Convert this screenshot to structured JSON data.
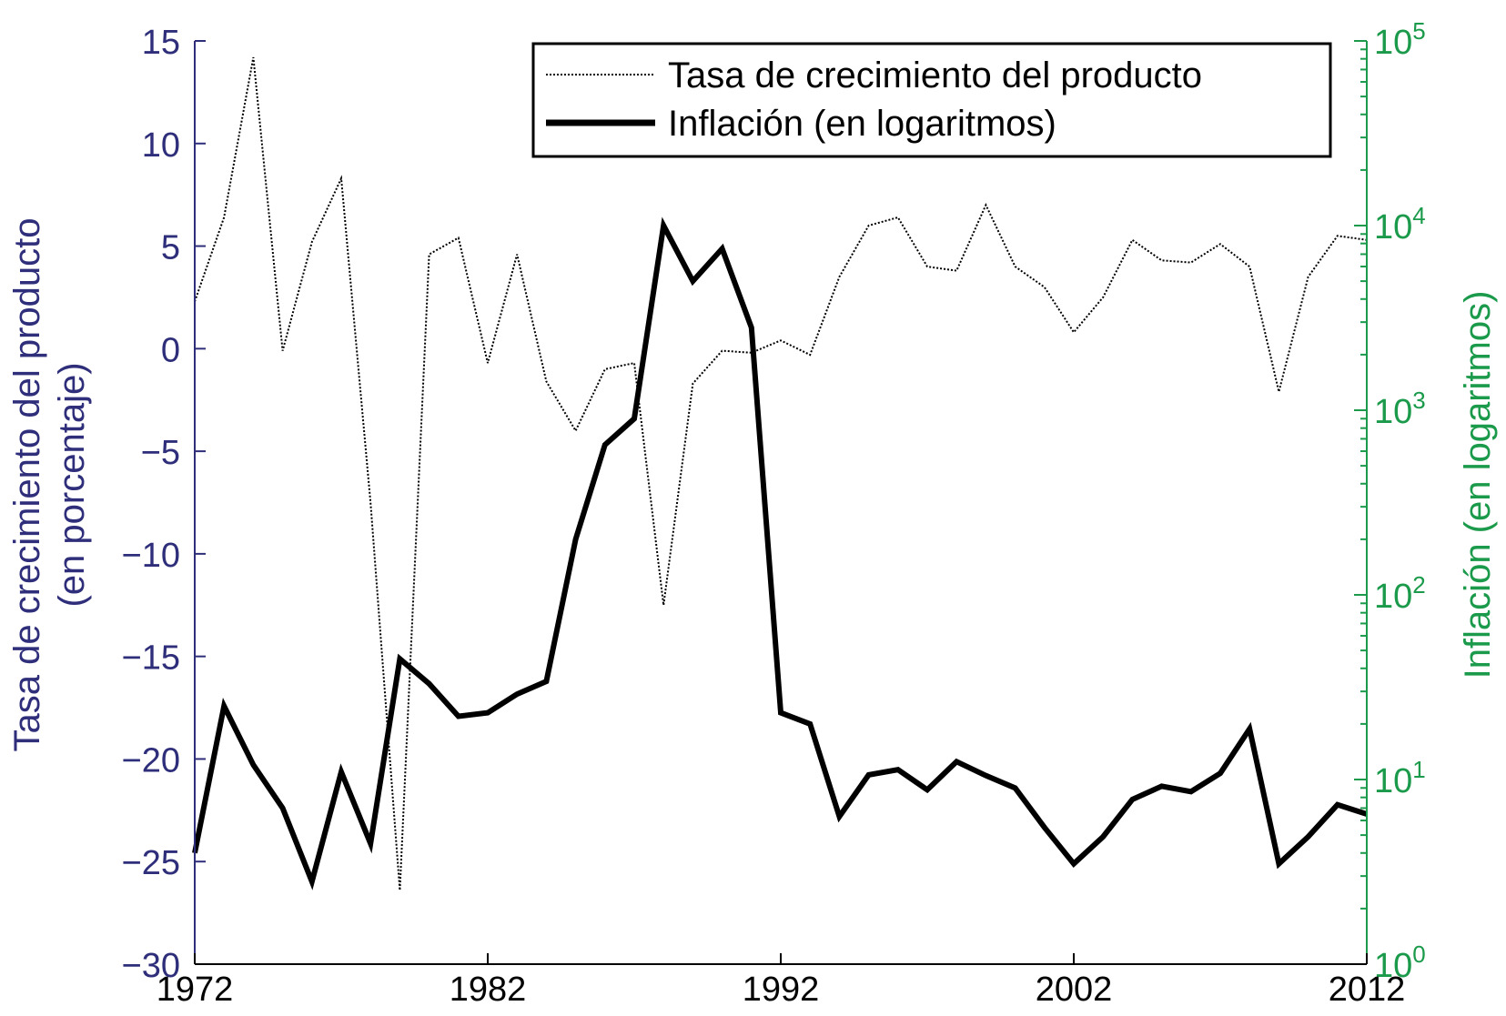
{
  "chart_data": {
    "type": "line",
    "title": "",
    "x": [
      1972,
      1973,
      1974,
      1975,
      1976,
      1977,
      1978,
      1979,
      1980,
      1981,
      1982,
      1983,
      1984,
      1985,
      1986,
      1987,
      1988,
      1989,
      1990,
      1991,
      1992,
      1993,
      1994,
      1995,
      1996,
      1997,
      1998,
      1999,
      2000,
      2001,
      2002,
      2003,
      2004,
      2005,
      2006,
      2007,
      2008,
      2009,
      2010,
      2011,
      2012
    ],
    "xlim": [
      1972,
      2012
    ],
    "xticks": [
      "1972",
      "1982",
      "1992",
      "2002",
      "2012"
    ],
    "y_left": {
      "label": "Tasa de crecimiento del producto (en porcentaje)",
      "label_lines": [
        "Tasa de crecimiento del producto",
        "(en porcentaje)"
      ],
      "lim": [
        -30,
        15
      ],
      "ticks": [
        15,
        10,
        5,
        0,
        -5,
        -10,
        -15,
        -20,
        -25,
        -30
      ],
      "tick_labels": [
        "15",
        "10",
        "5",
        "0",
        "−5",
        "−10",
        "−15",
        "−20",
        "−25",
        "−30"
      ],
      "color": "#2e2e7a"
    },
    "y_right": {
      "label": "Inflación (en logaritmos)",
      "scale": "log",
      "lim": [
        1,
        100000
      ],
      "ticks": [
        1,
        10,
        100,
        1000,
        10000,
        100000
      ],
      "tick_bases": [
        "10",
        "10",
        "10",
        "10",
        "10",
        "10"
      ],
      "tick_exponents": [
        "0",
        "1",
        "2",
        "3",
        "4",
        "5"
      ],
      "color": "#1a9a4a"
    },
    "series": [
      {
        "name": "Tasa de crecimiento del producto",
        "axis": "left",
        "style": "dotted",
        "color": "#000000",
        "values": [
          2.3,
          6.4,
          14.2,
          -0.1,
          5.2,
          8.3,
          -7.5,
          -26.4,
          4.6,
          5.4,
          -0.7,
          4.6,
          -1.6,
          -4.0,
          -1.0,
          -0.7,
          -12.5,
          -1.7,
          -0.1,
          -0.2,
          0.4,
          -0.3,
          3.5,
          6.0,
          6.4,
          4.0,
          3.8,
          7.0,
          4.0,
          3.0,
          0.8,
          2.5,
          5.3,
          4.3,
          4.2,
          5.1,
          4.0,
          -2.1,
          3.5,
          5.5,
          5.3
        ]
      },
      {
        "name": "Inflación (en logaritmos)",
        "axis": "right",
        "style": "solid",
        "color": "#000000",
        "values": [
          4,
          25,
          12,
          7,
          2.8,
          11,
          4.5,
          45,
          33,
          22,
          23,
          29,
          34,
          200,
          650,
          900,
          10000,
          5000,
          7500,
          2800,
          23,
          20,
          6.3,
          10.6,
          11.3,
          8.8,
          12.5,
          10.5,
          9,
          5.5,
          3.5,
          4.9,
          7.8,
          9.2,
          8.6,
          10.8,
          18.8,
          3.5,
          4.9,
          7.3,
          6.5
        ]
      }
    ],
    "legend": {
      "position": "top-right",
      "entries": [
        "Tasa de crecimiento del producto",
        "Inflación (en logaritmos)"
      ]
    },
    "grid": false
  }
}
